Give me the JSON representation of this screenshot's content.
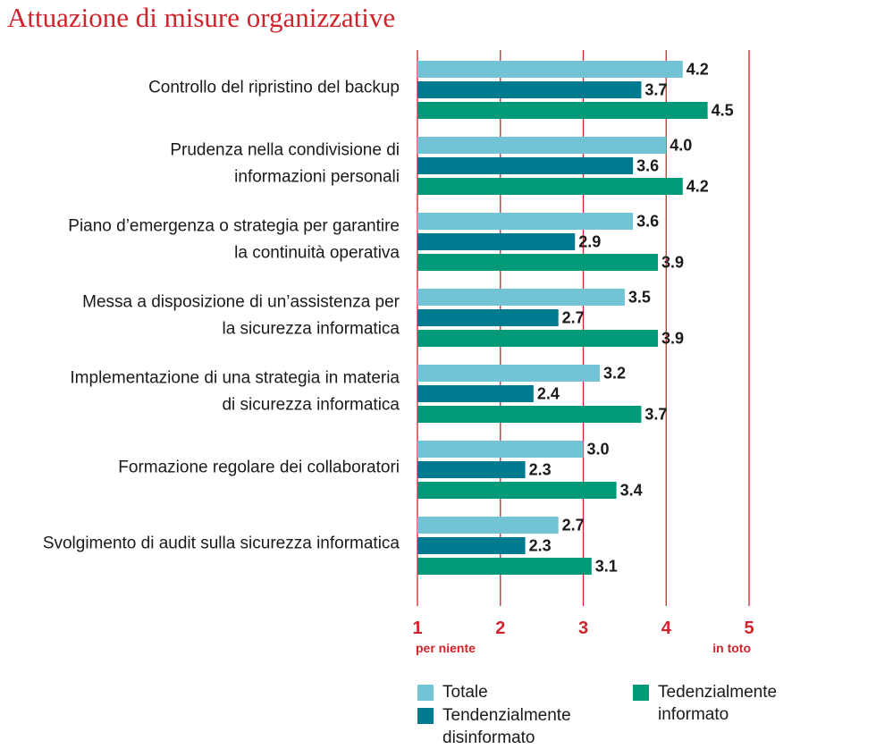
{
  "chart_data": {
    "type": "bar",
    "orientation": "horizontal",
    "title": "Attuazione di misure organizzative",
    "categories": [
      [
        "Controllo del ripristino del backup"
      ],
      [
        "Prudenza nella condivisione di",
        "informazioni personali"
      ],
      [
        "Piano d’emergenza o strategia per garantire",
        "la continuità operativa"
      ],
      [
        "Messa a disposizione di un’assistenza per",
        "la sicurezza informatica"
      ],
      [
        "Implementazione di una strategia in materia",
        "di sicurezza informatica"
      ],
      [
        "Formazione regolare dei collaboratori"
      ],
      [
        "Svolgimento di audit sulla sicurezza informatica"
      ]
    ],
    "series": [
      {
        "name": "Totale",
        "color": "#72c3d4",
        "values": [
          4.2,
          4.0,
          3.6,
          3.5,
          3.2,
          3.0,
          2.7
        ],
        "labels": [
          "4.2",
          "4.0",
          "3.6",
          "3.5",
          "3.2",
          "3.0",
          "2.7"
        ]
      },
      {
        "name": "Tendenzialmente disinformato",
        "color": "#007a8f",
        "values": [
          3.7,
          3.6,
          2.9,
          2.7,
          2.4,
          2.3,
          2.3
        ],
        "labels": [
          "3.7",
          "3.6",
          "2.9",
          "2.7",
          "2.4",
          "2.3",
          "2.3"
        ]
      },
      {
        "name": "Tedenzialmente informato",
        "color": "#009a78",
        "values": [
          4.5,
          4.2,
          3.9,
          3.9,
          3.7,
          3.4,
          3.1
        ],
        "labels": [
          "4.5",
          "4.2",
          "3.9",
          "3.9",
          "3.7",
          "3.4",
          "3.1"
        ]
      }
    ],
    "xlim": [
      1,
      5
    ],
    "xticks": [
      "1",
      "2",
      "3",
      "4",
      "5"
    ],
    "axis_end_labels": {
      "min": "per niente",
      "max": "in toto"
    },
    "gridline_color": "#d0242c",
    "legend": {
      "placement": "bottom",
      "items": [
        {
          "lines": [
            "Totale"
          ],
          "color": "#72c3d4"
        },
        {
          "lines": [
            "Tendenzialmente",
            "disinformato"
          ],
          "color": "#007a8f"
        },
        {
          "lines": [
            "Tedenzialmente",
            "informato"
          ],
          "color": "#009a78"
        }
      ]
    }
  }
}
